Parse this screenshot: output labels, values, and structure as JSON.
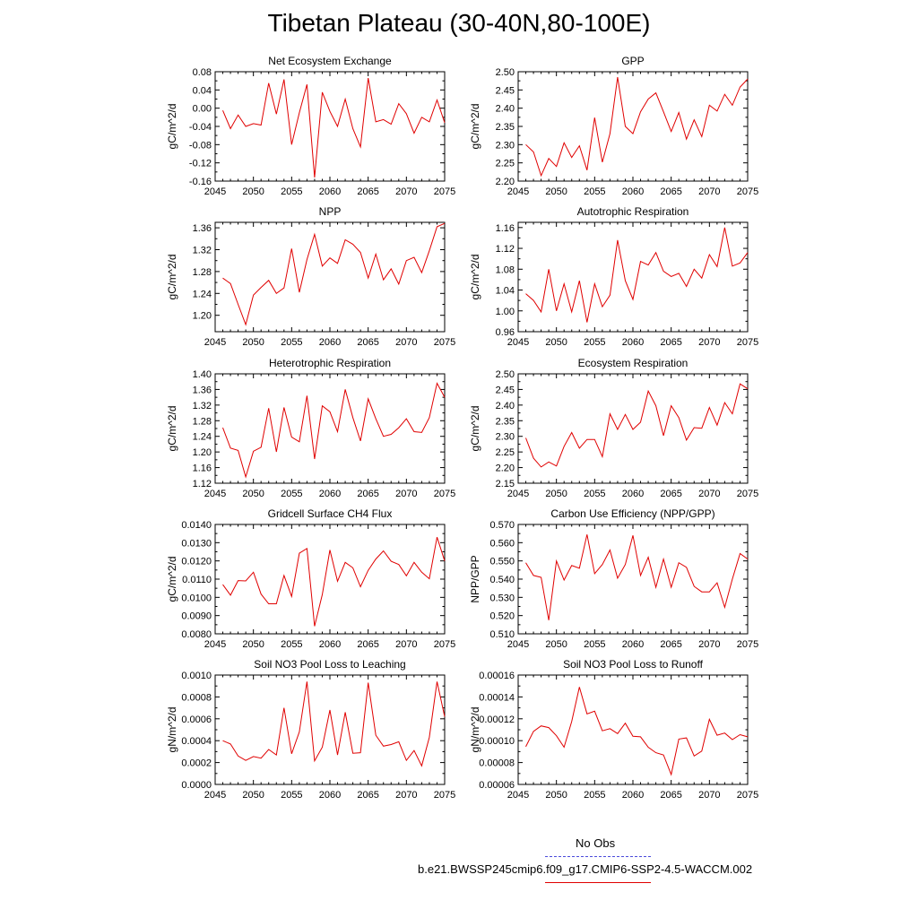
{
  "title": "Tibetan Plateau (30-40N,80-100E)",
  "legend": [
    {
      "label": "No Obs",
      "color": "#4a4adb",
      "style": "dashed"
    },
    {
      "label": "b.e21.BWSSP245cmip6.f09_g17.CMIP6-SSP2-4.5-WACCM.002",
      "color": "#e00000",
      "style": "solid"
    }
  ],
  "chart_data": [
    {
      "type": "line",
      "title": "Net Ecosystem Exchange",
      "xlabel": "",
      "ylabel": "gC/m^2/d",
      "xlim": [
        2045,
        2075
      ],
      "ylim": [
        -0.16,
        0.08
      ],
      "xticks": [
        2045,
        2050,
        2055,
        2060,
        2065,
        2070,
        2075
      ],
      "yticks": [
        "-0.16",
        "-0.12",
        "-0.08",
        "-0.04",
        "0.00",
        "0.04",
        "0.08"
      ],
      "x_start": 2046,
      "series": [
        {
          "color": "#e00000",
          "values": [
            -0.005,
            -0.045,
            -0.015,
            -0.04,
            -0.034,
            -0.037,
            0.055,
            -0.013,
            0.063,
            -0.08,
            -0.01,
            0.052,
            -0.152,
            0.035,
            -0.007,
            -0.04,
            0.02,
            -0.045,
            -0.085,
            0.066,
            -0.03,
            -0.025,
            -0.035,
            0.01,
            -0.012,
            -0.055,
            -0.02,
            -0.03,
            0.018,
            -0.032
          ]
        }
      ]
    },
    {
      "type": "line",
      "title": "GPP",
      "xlabel": "",
      "ylabel": "gC/m^2/d",
      "xlim": [
        2045,
        2075
      ],
      "ylim": [
        2.2,
        2.5
      ],
      "xticks": [
        2045,
        2050,
        2055,
        2060,
        2065,
        2070,
        2075
      ],
      "yticks": [
        "2.20",
        "2.25",
        "2.30",
        "2.35",
        "2.40",
        "2.45",
        "2.50"
      ],
      "x_start": 2046,
      "series": [
        {
          "color": "#e00000",
          "values": [
            2.3,
            2.28,
            2.215,
            2.262,
            2.24,
            2.305,
            2.265,
            2.297,
            2.23,
            2.374,
            2.252,
            2.33,
            2.485,
            2.35,
            2.33,
            2.39,
            2.425,
            2.442,
            2.39,
            2.336,
            2.388,
            2.315,
            2.368,
            2.322,
            2.408,
            2.392,
            2.438,
            2.408,
            2.458,
            2.48
          ]
        }
      ]
    },
    {
      "type": "line",
      "title": "NPP",
      "xlabel": "",
      "ylabel": "gC/m^2/d",
      "xlim": [
        2045,
        2075
      ],
      "ylim": [
        1.17,
        1.37
      ],
      "xticks": [
        2045,
        2050,
        2055,
        2060,
        2065,
        2070,
        2075
      ],
      "yticks": [
        "1.20",
        "1.24",
        "1.28",
        "1.32",
        "1.36"
      ],
      "x_start": 2046,
      "series": [
        {
          "color": "#e00000",
          "values": [
            1.268,
            1.258,
            1.22,
            1.183,
            1.237,
            1.251,
            1.264,
            1.24,
            1.25,
            1.322,
            1.242,
            1.302,
            1.348,
            1.29,
            1.305,
            1.295,
            1.338,
            1.33,
            1.315,
            1.268,
            1.312,
            1.265,
            1.285,
            1.257,
            1.3,
            1.306,
            1.278,
            1.318,
            1.362,
            1.368
          ]
        }
      ]
    },
    {
      "type": "line",
      "title": "Autotrophic Respiration",
      "xlabel": "",
      "ylabel": "gC/m^2/d",
      "xlim": [
        2045,
        2075
      ],
      "ylim": [
        0.96,
        1.17
      ],
      "xticks": [
        2045,
        2050,
        2055,
        2060,
        2065,
        2070,
        2075
      ],
      "yticks": [
        "0.96",
        "1.00",
        "1.04",
        "1.08",
        "1.12",
        "1.16"
      ],
      "x_start": 2046,
      "series": [
        {
          "color": "#e00000",
          "values": [
            1.033,
            1.02,
            0.998,
            1.08,
            1.0,
            1.052,
            0.998,
            1.058,
            0.978,
            1.052,
            1.008,
            1.03,
            1.136,
            1.058,
            1.022,
            1.095,
            1.088,
            1.112,
            1.076,
            1.066,
            1.072,
            1.047,
            1.08,
            1.063,
            1.108,
            1.085,
            1.16,
            1.086,
            1.092,
            1.112
          ]
        }
      ]
    },
    {
      "type": "line",
      "title": "Heterotrophic Respiration",
      "xlabel": "",
      "ylabel": "gC/m^2/d",
      "xlim": [
        2045,
        2075
      ],
      "ylim": [
        1.12,
        1.4
      ],
      "xticks": [
        2045,
        2050,
        2055,
        2060,
        2065,
        2070,
        2075
      ],
      "yticks": [
        "1.12",
        "1.16",
        "1.20",
        "1.24",
        "1.28",
        "1.32",
        "1.36",
        "1.40"
      ],
      "x_start": 2046,
      "series": [
        {
          "color": "#e00000",
          "values": [
            1.262,
            1.21,
            1.204,
            1.136,
            1.202,
            1.212,
            1.312,
            1.2,
            1.314,
            1.238,
            1.226,
            1.344,
            1.182,
            1.318,
            1.303,
            1.252,
            1.36,
            1.288,
            1.228,
            1.336,
            1.285,
            1.24,
            1.245,
            1.262,
            1.285,
            1.252,
            1.25,
            1.288,
            1.376,
            1.34
          ]
        }
      ]
    },
    {
      "type": "line",
      "title": "Ecosystem Respiration",
      "xlabel": "",
      "ylabel": "gC/m^2/d",
      "xlim": [
        2045,
        2075
      ],
      "ylim": [
        2.15,
        2.5
      ],
      "xticks": [
        2045,
        2050,
        2055,
        2060,
        2065,
        2070,
        2075
      ],
      "yticks": [
        "2.15",
        "2.20",
        "2.25",
        "2.30",
        "2.35",
        "2.40",
        "2.45",
        "2.50"
      ],
      "x_start": 2046,
      "series": [
        {
          "color": "#e00000",
          "values": [
            2.295,
            2.23,
            2.202,
            2.218,
            2.205,
            2.268,
            2.312,
            2.262,
            2.29,
            2.29,
            2.235,
            2.372,
            2.322,
            2.37,
            2.322,
            2.345,
            2.445,
            2.398,
            2.302,
            2.398,
            2.36,
            2.288,
            2.328,
            2.326,
            2.392,
            2.336,
            2.408,
            2.372,
            2.468,
            2.452
          ]
        }
      ]
    },
    {
      "type": "line",
      "title": "Gridcell Surface CH4 Flux",
      "xlabel": "",
      "ylabel": "gC/m^2/d",
      "xlim": [
        2045,
        2075
      ],
      "ylim": [
        0.008,
        0.014
      ],
      "xticks": [
        2045,
        2050,
        2055,
        2060,
        2065,
        2070,
        2075
      ],
      "yticks": [
        "0.0080",
        "0.0090",
        "0.0100",
        "0.0110",
        "0.0120",
        "0.0130",
        "0.0140"
      ],
      "x_start": 2046,
      "series": [
        {
          "color": "#e00000",
          "values": [
            0.0107,
            0.01012,
            0.01092,
            0.0109,
            0.01138,
            0.01018,
            0.00965,
            0.00965,
            0.0112,
            0.01005,
            0.01242,
            0.01268,
            0.00842,
            0.01015,
            0.0126,
            0.01088,
            0.01192,
            0.01162,
            0.01058,
            0.01148,
            0.0121,
            0.01255,
            0.01198,
            0.0118,
            0.01118,
            0.01192,
            0.01138,
            0.01102,
            0.0133,
            0.012
          ]
        }
      ]
    },
    {
      "type": "line",
      "title": "Carbon Use Efficiency (NPP/GPP)",
      "xlabel": "",
      "ylabel": "NPP/GPP",
      "xlim": [
        2045,
        2075
      ],
      "ylim": [
        0.51,
        0.57
      ],
      "xticks": [
        2045,
        2050,
        2055,
        2060,
        2065,
        2070,
        2075
      ],
      "yticks": [
        "0.510",
        "0.520",
        "0.530",
        "0.540",
        "0.550",
        "0.560",
        "0.570"
      ],
      "x_start": 2046,
      "series": [
        {
          "color": "#e00000",
          "values": [
            0.549,
            0.542,
            0.541,
            0.5175,
            0.55,
            0.5395,
            0.5475,
            0.546,
            0.5645,
            0.543,
            0.548,
            0.556,
            0.5405,
            0.548,
            0.564,
            0.542,
            0.552,
            0.5355,
            0.551,
            0.5355,
            0.549,
            0.5465,
            0.536,
            0.533,
            0.533,
            0.538,
            0.5245,
            0.54,
            0.554,
            0.551
          ]
        }
      ]
    },
    {
      "type": "line",
      "title": "Soil NO3 Pool Loss to Leaching",
      "xlabel": "",
      "ylabel": "gN/m^2/d",
      "xlim": [
        2045,
        2075
      ],
      "ylim": [
        0.0,
        0.001
      ],
      "xticks": [
        2045,
        2050,
        2055,
        2060,
        2065,
        2070,
        2075
      ],
      "yticks": [
        "0.0000",
        "0.0002",
        "0.0004",
        "0.0006",
        "0.0008",
        "0.0010"
      ],
      "x_start": 2046,
      "series": [
        {
          "color": "#e00000",
          "values": [
            0.0004,
            0.00037,
            0.00026,
            0.00022,
            0.000255,
            0.00024,
            0.00032,
            0.00027,
            0.0007,
            0.00028,
            0.00048,
            0.00094,
            0.000215,
            0.00034,
            0.00068,
            0.00027,
            0.00066,
            0.000285,
            0.00029,
            0.00093,
            0.00045,
            0.00035,
            0.000365,
            0.00039,
            0.00022,
            0.00031,
            0.00017,
            0.00043,
            0.00094,
            0.00062
          ]
        }
      ]
    },
    {
      "type": "line",
      "title": "Soil NO3 Pool Loss to Runoff",
      "xlabel": "",
      "ylabel": "gN/m^2/d",
      "xlim": [
        2045,
        2075
      ],
      "ylim": [
        6e-05,
        0.00016
      ],
      "xticks": [
        2045,
        2050,
        2055,
        2060,
        2065,
        2070,
        2075
      ],
      "yticks": [
        "0.00006",
        "0.00008",
        "0.00010",
        "0.00012",
        "0.00014",
        "0.00016"
      ],
      "x_start": 2046,
      "series": [
        {
          "color": "#e00000",
          "values": [
            9.45e-05,
            0.0001085,
            0.0001135,
            0.000112,
            0.0001045,
            9.4e-05,
            0.0001175,
            0.000149,
            0.0001245,
            0.000127,
            0.000109,
            0.000111,
            0.0001065,
            0.000116,
            0.000104,
            0.0001035,
            9.4e-05,
            8.9e-05,
            8.7e-05,
            6.9e-05,
            0.0001015,
            0.0001025,
            8.6e-05,
            9.05e-05,
            0.0001195,
            0.000105,
            0.000107,
            0.000101,
            0.0001055,
            0.0001035
          ]
        }
      ]
    }
  ]
}
